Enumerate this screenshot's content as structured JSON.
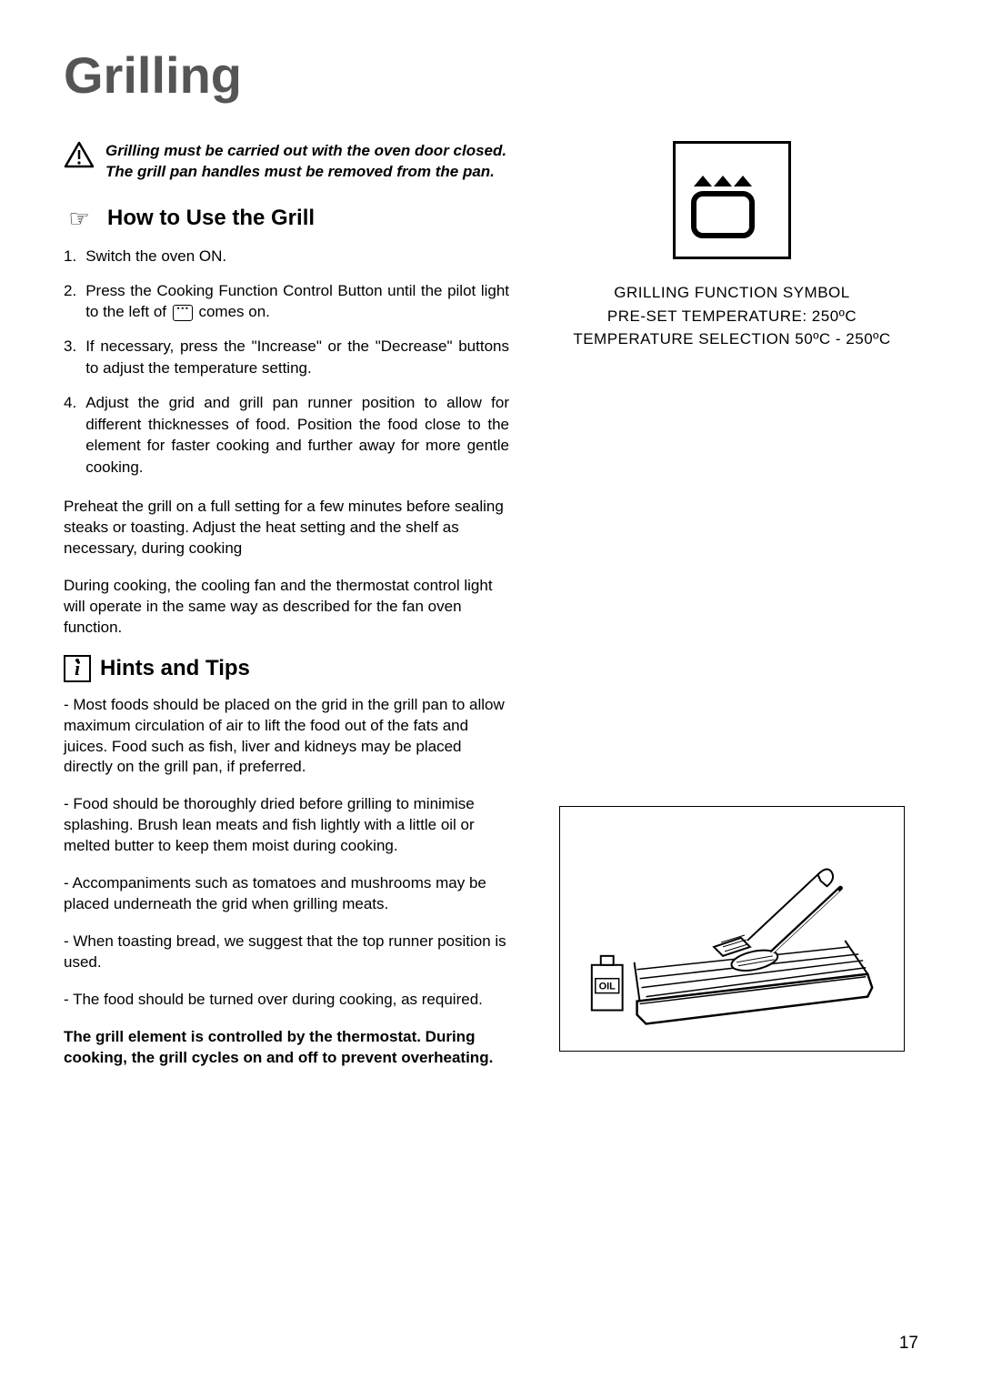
{
  "page_title": "Grilling",
  "warning": {
    "text": "Grilling must be carried out with the oven door closed. The grill pan handles must be removed from the pan."
  },
  "section1": {
    "title": "How to Use the Grill",
    "steps": [
      {
        "num": "1.",
        "text_before": "Switch the oven ON.",
        "has_icon": false
      },
      {
        "num": "2.",
        "text_before": "Press the Cooking Function Control Button until the pilot light to the left of ",
        "text_after": " comes on.",
        "has_icon": true
      },
      {
        "num": "3.",
        "text_before": "If necessary, press the \"Increase\" or the \"Decrease\" buttons to adjust the temperature setting.",
        "has_icon": false
      },
      {
        "num": "4.",
        "text_before": "Adjust the grid and grill pan runner position to allow for different thicknesses of food. Position the food close to the element for faster cooking and further away for more gentle cooking.",
        "has_icon": false
      }
    ],
    "para1": "Preheat the grill on a full setting  for a  few minutes before sealing steaks or toasting. Adjust the heat setting and the shelf as necessary, during cooking",
    "para2": "During cooking, the cooling fan and the thermostat control light will operate in the same way as described for the fan oven function."
  },
  "section2": {
    "title": "Hints and Tips",
    "tips": [
      "- Most foods should be placed on the grid in the grill pan to allow maximum circulation of air to lift the food out of the fats and juices. Food such as fish, liver and kidneys may be placed directly on the grill pan, if preferred.",
      "- Food should be thoroughly dried before grilling to minimise splashing. Brush lean meats and fish lightly with a little oil or melted butter to keep them moist during cooking.",
      "- Accompaniments such as tomatoes and mushrooms may be placed underneath the grid when grilling meats.",
      "- When toasting bread, we suggest that the top runner position is used.",
      "- The food should be turned over during cooking, as required."
    ],
    "bold_note": "The grill element is controlled by the thermostat. During cooking, the grill cycles on and off to prevent overheating."
  },
  "symbol": {
    "line1": "GRILLING FUNCTION SYMBOL",
    "line2": "PRE-SET TEMPERATURE: 250ºC",
    "line3": "TEMPERATURE SELECTION 50ºC - 250ºC"
  },
  "page_number": "17"
}
